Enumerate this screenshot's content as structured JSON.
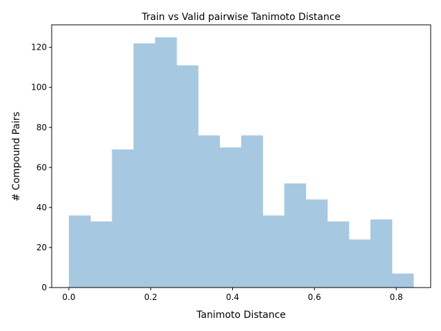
{
  "chart_data": {
    "type": "bar",
    "subtype": "histogram",
    "title": "Train vs Valid pairwise Tanimoto Distance",
    "xlabel": "Tanimoto Distance",
    "ylabel": "# Compound Pairs",
    "bin_edges": [
      0.0,
      0.0526,
      0.1053,
      0.1579,
      0.2105,
      0.2632,
      0.3158,
      0.3684,
      0.4211,
      0.4737,
      0.5263,
      0.5789,
      0.6316,
      0.6842,
      0.7368,
      0.7895,
      0.8421
    ],
    "values": [
      36,
      33,
      69,
      122,
      125,
      111,
      76,
      70,
      76,
      36,
      52,
      44,
      33,
      24,
      34,
      7
    ],
    "xlim": [
      -0.042,
      0.884
    ],
    "ylim": [
      0,
      131.25
    ],
    "xticks": [
      0.0,
      0.2,
      0.4,
      0.6,
      0.8
    ],
    "xtick_labels": [
      "0.0",
      "0.2",
      "0.4",
      "0.6",
      "0.8"
    ],
    "yticks": [
      0,
      20,
      40,
      60,
      80,
      100,
      120
    ],
    "ytick_labels": [
      "0",
      "20",
      "40",
      "60",
      "80",
      "100",
      "120"
    ],
    "bar_color": "#a6c8e0",
    "grid": false,
    "legend": "none"
  }
}
